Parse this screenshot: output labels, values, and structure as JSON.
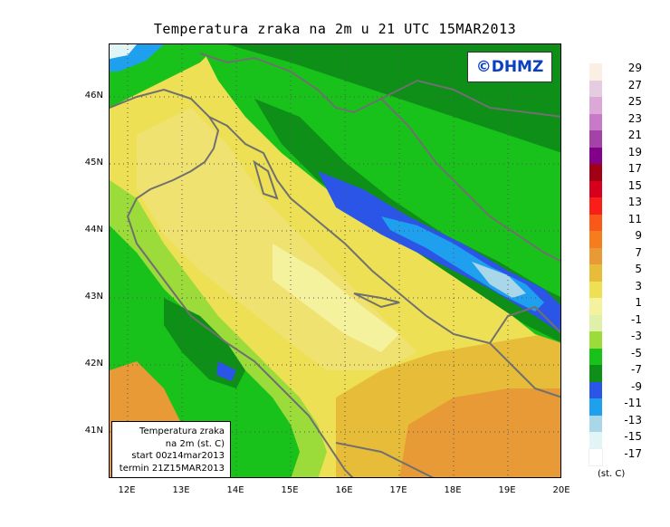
{
  "title": "Temperatura zraka na 2m u 21 UTC 15MAR2013",
  "logo_text": "©DHMZ",
  "info_box": {
    "line1": "Temperatura zraka",
    "line2": "na 2m (st. C)",
    "line3": "start 00z14mar2013",
    "line4": "termin 21Z15MAR2013"
  },
  "lat_ticks": [
    "46N",
    "45N",
    "44N",
    "43N",
    "42N",
    "41N"
  ],
  "lon_ticks": [
    "12E",
    "13E",
    "14E",
    "15E",
    "16E",
    "17E",
    "18E",
    "19E",
    "20E"
  ],
  "legend": {
    "unit": "(st. C)",
    "items": [
      {
        "label": "29",
        "color": "#fbeee2"
      },
      {
        "label": "27",
        "color": "#e6cce0"
      },
      {
        "label": "25",
        "color": "#dba8d8"
      },
      {
        "label": "23",
        "color": "#c879c8"
      },
      {
        "label": "21",
        "color": "#a442a8"
      },
      {
        "label": "19",
        "color": "#82008a"
      },
      {
        "label": "17",
        "color": "#a10015"
      },
      {
        "label": "15",
        "color": "#d6001d"
      },
      {
        "label": "13",
        "color": "#fa1e18"
      },
      {
        "label": "11",
        "color": "#f95918"
      },
      {
        "label": "9",
        "color": "#f57d1c"
      },
      {
        "label": "7",
        "color": "#e79a36"
      },
      {
        "label": "5",
        "color": "#e7bc38"
      },
      {
        "label": "3",
        "color": "#ede054"
      },
      {
        "label": "1",
        "color": "#f5f29e"
      },
      {
        "label": "-1",
        "color": "#dff0a8"
      },
      {
        "label": "-3",
        "color": "#9bdc3b"
      },
      {
        "label": "-5",
        "color": "#18c21a"
      },
      {
        "label": "-7",
        "color": "#0e8f18"
      },
      {
        "label": "-9",
        "color": "#2b55e6"
      },
      {
        "label": "-11",
        "color": "#1ea0ef"
      },
      {
        "label": "-13",
        "color": "#a9d6e8"
      },
      {
        "label": "-15",
        "color": "#e1f4f6"
      },
      {
        "label": "-17",
        "color": "#ffffff"
      }
    ]
  }
}
